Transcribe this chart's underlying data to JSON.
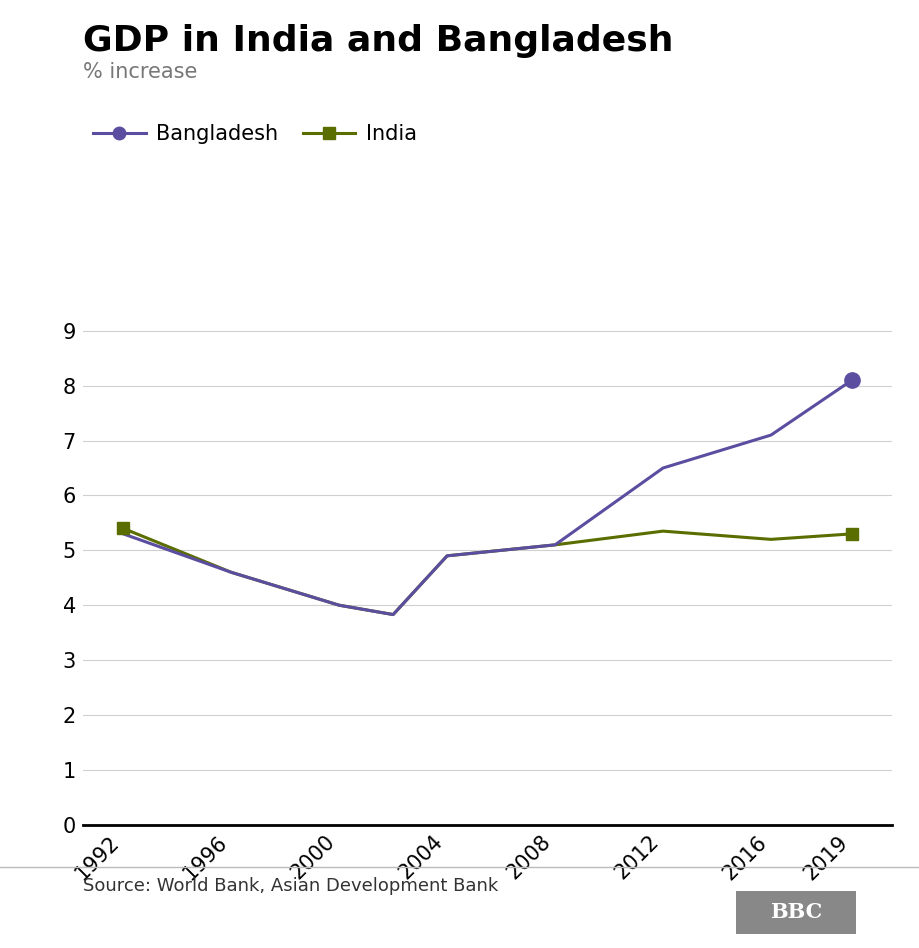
{
  "title": "GDP in India and Bangladesh",
  "subtitle": "% increase",
  "source": "Source: World Bank, Asian Development Bank",
  "bangladesh": {
    "years": [
      1992,
      1996,
      2000,
      2002,
      2004,
      2008,
      2012,
      2016,
      2019
    ],
    "values": [
      5.3,
      4.6,
      4.0,
      3.83,
      4.9,
      5.1,
      6.5,
      7.1,
      8.1
    ],
    "color": "#5b4ea0",
    "marker": "o",
    "label": "Bangladesh"
  },
  "india": {
    "years": [
      1992,
      1996,
      2000,
      2002,
      2004,
      2008,
      2012,
      2016,
      2019
    ],
    "values": [
      5.4,
      4.6,
      4.0,
      3.83,
      4.9,
      5.1,
      5.35,
      5.2,
      5.3
    ],
    "color": "#5a6e00",
    "marker": "s",
    "label": "India"
  },
  "ylim": [
    0,
    9.5
  ],
  "yticks": [
    0,
    1,
    2,
    3,
    4,
    5,
    6,
    7,
    8,
    9
  ],
  "xlim": [
    1990.5,
    2020.5
  ],
  "xticks": [
    1992,
    1996,
    2000,
    2004,
    2008,
    2012,
    2016,
    2019
  ],
  "background_color": "#ffffff",
  "grid_color": "#d0d0d0",
  "title_fontsize": 26,
  "subtitle_fontsize": 15,
  "tick_fontsize": 15,
  "legend_fontsize": 15,
  "source_fontsize": 13
}
